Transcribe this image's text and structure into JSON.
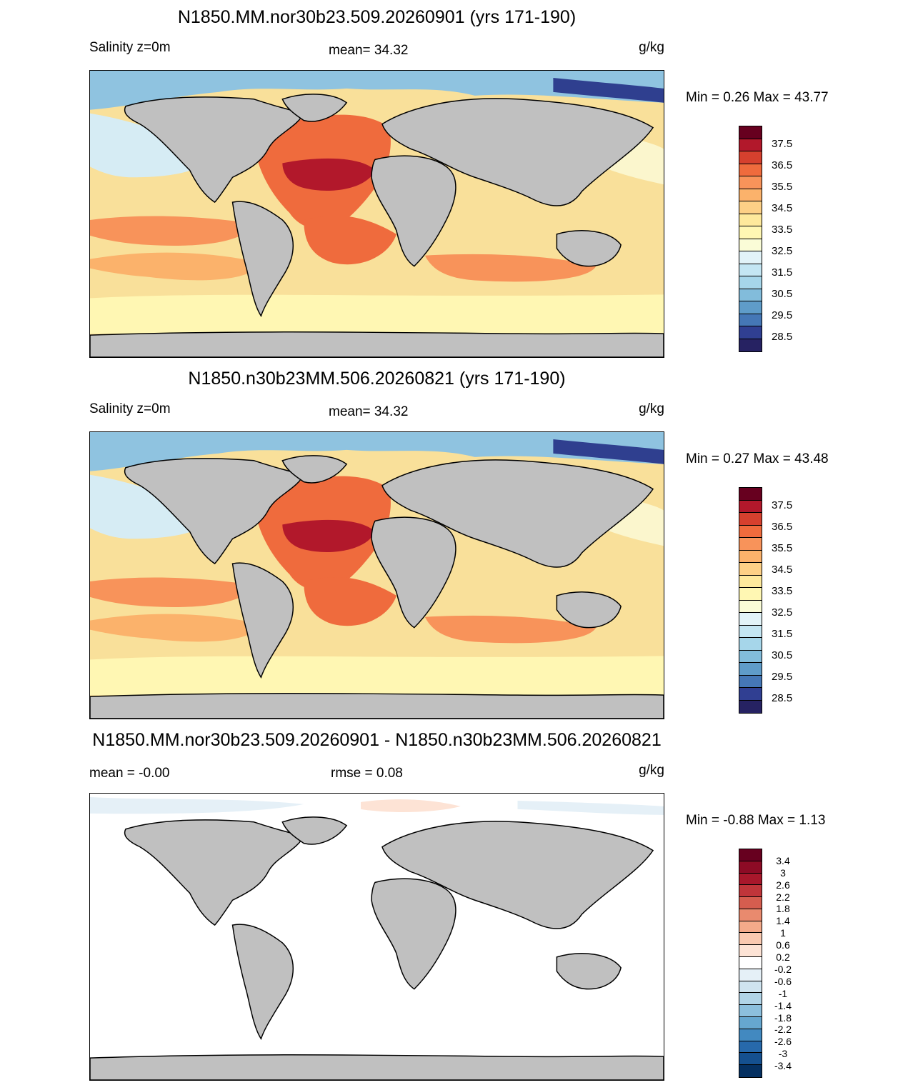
{
  "panels": [
    {
      "title": "N1850.MM.nor30b23.509.20260901 (yrs 171-190)",
      "left_label": "Salinity z=0m",
      "mid_label": "mean=  34.32",
      "units": "g/kg",
      "minmax": "Min =   0.26 Max =  43.77"
    },
    {
      "title": "N1850.n30b23MM.506.20260821 (yrs 171-190)",
      "left_label": "Salinity z=0m",
      "mid_label": "mean=  34.32",
      "units": "g/kg",
      "minmax": "Min =   0.27 Max =  43.48"
    },
    {
      "title": "N1850.MM.nor30b23.509.20260901 - N1850.n30b23MM.506.20260821",
      "left_label": "mean =  -0.00",
      "mid_label": "rmse =   0.08",
      "units": "g/kg",
      "minmax": "Min =  -0.88 Max =   1.13"
    }
  ],
  "salinity_colorbar": {
    "labels": [
      "37.5",
      "36.5",
      "35.5",
      "34.5",
      "33.5",
      "32.5",
      "31.5",
      "30.5",
      "29.5",
      "28.5"
    ],
    "colors": [
      "#67001f",
      "#b2182b",
      "#d6402e",
      "#ef6b3d",
      "#f8935a",
      "#fbb26b",
      "#fdd086",
      "#fee99c",
      "#fff7b3",
      "#fafcd7",
      "#e2f3f8",
      "#c4e6f3",
      "#a6d6ea",
      "#82bcdb",
      "#5f9cc9",
      "#4577b6",
      "#303f92",
      "#262262"
    ]
  },
  "difference_colorbar": {
    "labels": [
      "3.4",
      "3",
      "2.6",
      "2.2",
      "1.8",
      "1.4",
      "1",
      "0.6",
      "0.2",
      "-0.2",
      "-0.6",
      "-1",
      "-1.4",
      "-1.8",
      "-2.2",
      "-2.6",
      "-3",
      "-3.4"
    ],
    "colors": [
      "#67001f",
      "#8d0b25",
      "#a8172b",
      "#c0353a",
      "#d55d4f",
      "#e98a6e",
      "#f4aa8a",
      "#fac9b0",
      "#fde3d5",
      "#ffffff",
      "#e5f0f7",
      "#cfe4f0",
      "#b1d4e7",
      "#8cbfdd",
      "#66a7d0",
      "#4289c0",
      "#2769ab",
      "#15508f",
      "#053061"
    ]
  },
  "land_color": "#c0c0c0"
}
